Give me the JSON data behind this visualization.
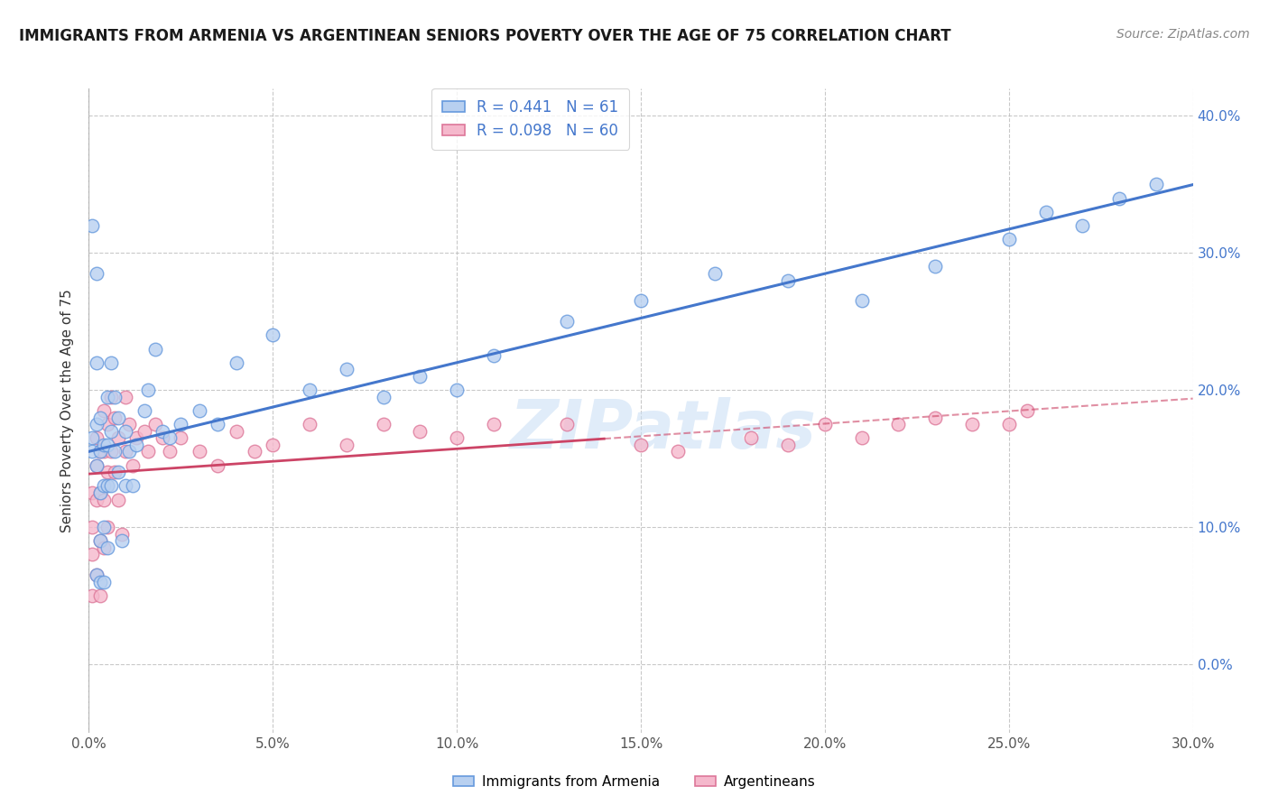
{
  "title": "IMMIGRANTS FROM ARMENIA VS ARGENTINEAN SENIORS POVERTY OVER THE AGE OF 75 CORRELATION CHART",
  "source": "Source: ZipAtlas.com",
  "ylabel": "Seniors Poverty Over the Age of 75",
  "legend_label_1": "Immigrants from Armenia",
  "legend_label_2": "Argentineans",
  "R1": 0.441,
  "N1": 61,
  "R2": 0.098,
  "N2": 60,
  "color1_fill": "#b8d0f0",
  "color1_edge": "#6699dd",
  "color1_line": "#4477cc",
  "color2_fill": "#f5b8cc",
  "color2_edge": "#dd7799",
  "color2_line": "#cc4466",
  "xlim": [
    0.0,
    0.3
  ],
  "ylim": [
    -0.05,
    0.42
  ],
  "xticks": [
    0.0,
    0.05,
    0.1,
    0.15,
    0.2,
    0.25,
    0.3
  ],
  "yticks": [
    0.0,
    0.1,
    0.2,
    0.3,
    0.4
  ],
  "background_color": "#ffffff",
  "grid_color": "#bbbbbb",
  "watermark": "ZIPatlas",
  "scatter1_x": [
    0.001,
    0.001,
    0.001,
    0.002,
    0.002,
    0.002,
    0.002,
    0.002,
    0.003,
    0.003,
    0.003,
    0.003,
    0.003,
    0.004,
    0.004,
    0.004,
    0.004,
    0.005,
    0.005,
    0.005,
    0.005,
    0.006,
    0.006,
    0.006,
    0.007,
    0.007,
    0.008,
    0.008,
    0.009,
    0.01,
    0.01,
    0.011,
    0.012,
    0.013,
    0.015,
    0.016,
    0.018,
    0.02,
    0.022,
    0.025,
    0.03,
    0.035,
    0.04,
    0.05,
    0.06,
    0.07,
    0.08,
    0.09,
    0.1,
    0.11,
    0.13,
    0.15,
    0.17,
    0.19,
    0.21,
    0.23,
    0.25,
    0.26,
    0.27,
    0.28,
    0.29
  ],
  "scatter1_y": [
    0.165,
    0.155,
    0.32,
    0.285,
    0.22,
    0.175,
    0.145,
    0.065,
    0.18,
    0.155,
    0.125,
    0.09,
    0.06,
    0.16,
    0.13,
    0.1,
    0.06,
    0.195,
    0.16,
    0.13,
    0.085,
    0.22,
    0.17,
    0.13,
    0.195,
    0.155,
    0.18,
    0.14,
    0.09,
    0.17,
    0.13,
    0.155,
    0.13,
    0.16,
    0.185,
    0.2,
    0.23,
    0.17,
    0.165,
    0.175,
    0.185,
    0.175,
    0.22,
    0.24,
    0.2,
    0.215,
    0.195,
    0.21,
    0.2,
    0.225,
    0.25,
    0.265,
    0.285,
    0.28,
    0.265,
    0.29,
    0.31,
    0.33,
    0.32,
    0.34,
    0.35
  ],
  "scatter2_x": [
    0.001,
    0.001,
    0.001,
    0.001,
    0.002,
    0.002,
    0.002,
    0.002,
    0.003,
    0.003,
    0.003,
    0.003,
    0.004,
    0.004,
    0.004,
    0.004,
    0.005,
    0.005,
    0.005,
    0.006,
    0.006,
    0.007,
    0.007,
    0.008,
    0.008,
    0.009,
    0.01,
    0.01,
    0.011,
    0.012,
    0.013,
    0.015,
    0.016,
    0.018,
    0.02,
    0.022,
    0.025,
    0.03,
    0.035,
    0.04,
    0.045,
    0.05,
    0.06,
    0.07,
    0.08,
    0.09,
    0.1,
    0.11,
    0.13,
    0.15,
    0.16,
    0.18,
    0.19,
    0.2,
    0.21,
    0.22,
    0.23,
    0.24,
    0.25,
    0.255
  ],
  "scatter2_y": [
    0.125,
    0.1,
    0.08,
    0.05,
    0.165,
    0.145,
    0.12,
    0.065,
    0.155,
    0.125,
    0.09,
    0.05,
    0.185,
    0.155,
    0.12,
    0.085,
    0.175,
    0.14,
    0.1,
    0.195,
    0.155,
    0.18,
    0.14,
    0.165,
    0.12,
    0.095,
    0.195,
    0.155,
    0.175,
    0.145,
    0.165,
    0.17,
    0.155,
    0.175,
    0.165,
    0.155,
    0.165,
    0.155,
    0.145,
    0.17,
    0.155,
    0.16,
    0.175,
    0.16,
    0.175,
    0.17,
    0.165,
    0.175,
    0.175,
    0.16,
    0.155,
    0.165,
    0.16,
    0.175,
    0.165,
    0.175,
    0.18,
    0.175,
    0.175,
    0.185
  ],
  "trend1_x_end": 0.3,
  "trend2_x_data_end": 0.14,
  "trend2_x_dashed_end": 0.3
}
